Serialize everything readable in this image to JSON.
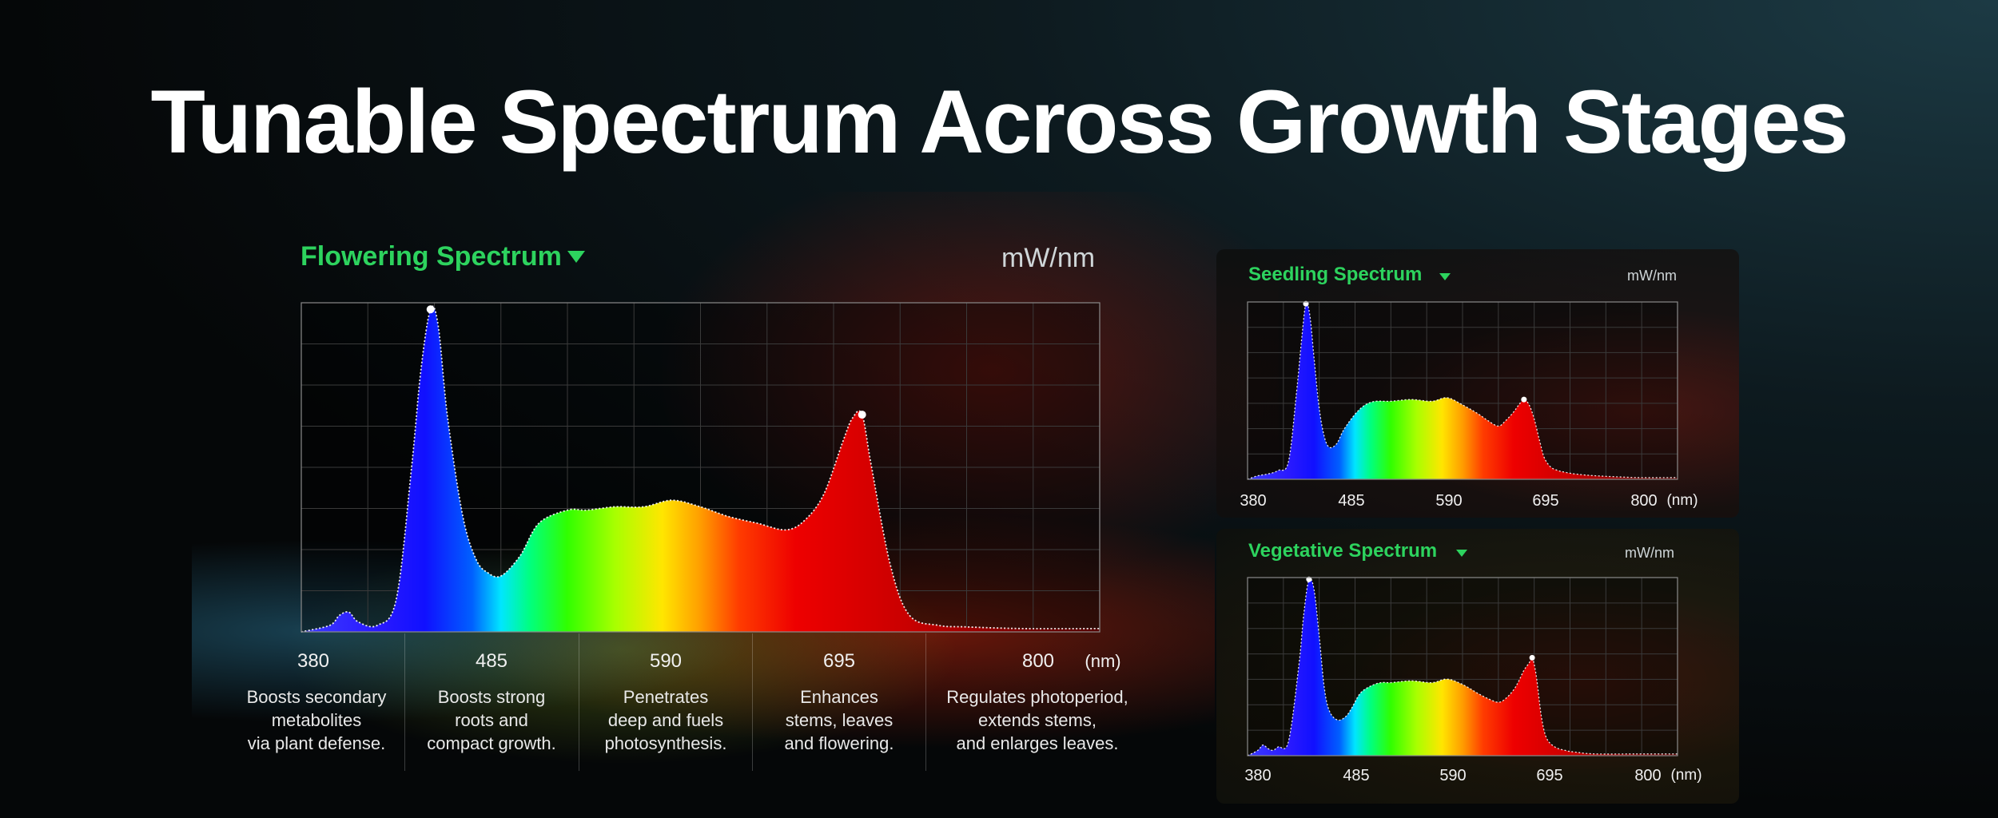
{
  "title": "Tunable Spectrum Across Growth Stages",
  "colors": {
    "title": "#ffffff",
    "legend": "#2dd35e",
    "text": "#e8e8e8",
    "grid": "#3a3a3a"
  },
  "main": {
    "legend_label": "Flowering Spectrum",
    "legend_icon": "triangle-down-icon",
    "unit": "mW/nm",
    "x_unit": "(nm)",
    "descriptions": [
      "Boosts secondary\nmetabolites\nvia plant defense.",
      "Boosts strong\nroots and\ncompact growth.",
      "Penetrates\ndeep and fuels\nphotosynthesis.",
      "Enhances\nstems, leaves\nand flowering.",
      "Regulates photoperiod,\nextends stems,\nand enlarges leaves."
    ]
  },
  "seedling": {
    "legend_label": "Seedling Spectrum",
    "legend_icon": "triangle-down-icon",
    "unit": "mW/nm",
    "x_unit": "(nm)"
  },
  "vegetative": {
    "legend_label": "Vegetative Spectrum",
    "legend_icon": "triangle-down-icon",
    "unit": "mW/nm",
    "x_unit": "(nm)"
  },
  "chart_data": [
    {
      "type": "area",
      "legend": "Flowering Spectrum",
      "ylabel": "mW/nm",
      "xlabel": "(nm)",
      "x_ticks": [
        380,
        485,
        590,
        695,
        800
      ],
      "xlim": [
        380,
        800
      ],
      "ylim": [
        0,
        1
      ],
      "grid": true,
      "series": [
        {
          "x": [
            380,
            395,
            400,
            405,
            410,
            420,
            430,
            438,
            443,
            448,
            452,
            457,
            465,
            472,
            478,
            485,
            495,
            505,
            520,
            530,
            545,
            560,
            575,
            590,
            605,
            620,
            635,
            645,
            655,
            665,
            670,
            675,
            680,
            690,
            700,
            715,
            730,
            760,
            800
          ],
          "values": [
            0.0,
            0.02,
            0.05,
            0.06,
            0.03,
            0.02,
            0.1,
            0.5,
            0.8,
            0.98,
            0.93,
            0.65,
            0.35,
            0.22,
            0.18,
            0.17,
            0.23,
            0.33,
            0.37,
            0.37,
            0.38,
            0.38,
            0.4,
            0.38,
            0.35,
            0.33,
            0.31,
            0.34,
            0.42,
            0.58,
            0.65,
            0.66,
            0.5,
            0.2,
            0.05,
            0.02,
            0.015,
            0.01,
            0.01
          ]
        }
      ]
    },
    {
      "type": "area",
      "legend": "Seedling Spectrum",
      "ylabel": "mW/nm",
      "xlabel": "(nm)",
      "x_ticks": [
        380,
        485,
        590,
        695,
        800
      ],
      "xlim": [
        380,
        800
      ],
      "ylim": [
        0,
        1
      ],
      "grid": true,
      "series": [
        {
          "x": [
            380,
            390,
            400,
            410,
            420,
            428,
            433,
            437,
            441,
            445,
            450,
            455,
            460,
            467,
            473,
            480,
            487,
            495,
            505,
            520,
            540,
            560,
            575,
            590,
            605,
            615,
            625,
            632,
            640,
            645,
            650,
            655,
            660,
            666,
            670,
            676,
            683,
            690,
            700,
            720,
            760,
            800
          ],
          "values": [
            0.0,
            0.02,
            0.03,
            0.05,
            0.1,
            0.5,
            0.8,
            0.99,
            0.92,
            0.68,
            0.4,
            0.24,
            0.18,
            0.2,
            0.27,
            0.33,
            0.38,
            0.42,
            0.44,
            0.44,
            0.45,
            0.44,
            0.46,
            0.42,
            0.37,
            0.33,
            0.3,
            0.33,
            0.38,
            0.42,
            0.45,
            0.42,
            0.34,
            0.2,
            0.12,
            0.07,
            0.05,
            0.04,
            0.03,
            0.02,
            0.01,
            0.01
          ]
        }
      ]
    },
    {
      "type": "area",
      "legend": "Vegetative Spectrum",
      "ylabel": "mW/nm",
      "xlabel": "(nm)",
      "x_ticks": [
        380,
        485,
        590,
        695,
        800
      ],
      "xlim": [
        380,
        800
      ],
      "ylim": [
        0,
        1
      ],
      "grid": true,
      "series": [
        {
          "x": [
            380,
            390,
            395,
            400,
            405,
            410,
            420,
            430,
            435,
            440,
            445,
            450,
            455,
            460,
            468,
            476,
            482,
            490,
            500,
            510,
            520,
            540,
            560,
            575,
            590,
            605,
            615,
            625,
            632,
            640,
            645,
            650,
            655,
            658,
            662,
            667,
            672,
            680,
            690,
            700,
            720,
            760,
            800
          ],
          "values": [
            0.0,
            0.03,
            0.06,
            0.04,
            0.03,
            0.05,
            0.08,
            0.5,
            0.8,
            0.99,
            0.93,
            0.67,
            0.38,
            0.25,
            0.2,
            0.22,
            0.27,
            0.35,
            0.39,
            0.41,
            0.41,
            0.42,
            0.41,
            0.43,
            0.4,
            0.35,
            0.32,
            0.3,
            0.32,
            0.37,
            0.42,
            0.48,
            0.52,
            0.55,
            0.45,
            0.22,
            0.1,
            0.05,
            0.03,
            0.02,
            0.01,
            0.01,
            0.01
          ]
        }
      ]
    }
  ]
}
